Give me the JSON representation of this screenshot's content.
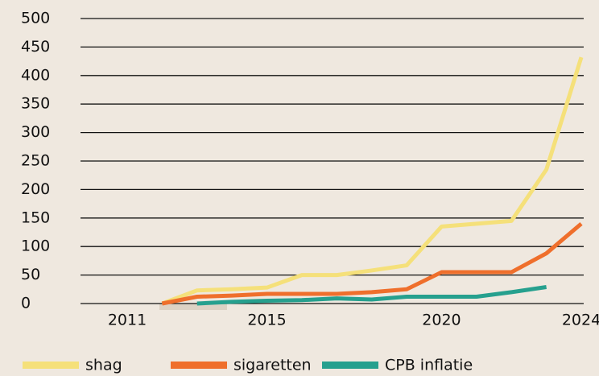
{
  "chart_data": {
    "type": "line",
    "x": [
      2012,
      2013,
      2014,
      2015,
      2016,
      2017,
      2018,
      2019,
      2020,
      2021,
      2022,
      2023,
      2024
    ],
    "series": [
      {
        "name": "shag",
        "color": "#f5e07a",
        "values": [
          0,
          23,
          25,
          28,
          50,
          50,
          58,
          67,
          135,
          140,
          145,
          235,
          432
        ]
      },
      {
        "name": "sigaretten",
        "color": "#ef6f2c",
        "values": [
          0,
          12,
          14,
          17,
          17,
          17,
          20,
          25,
          55,
          55,
          55,
          88,
          140
        ]
      },
      {
        "name": "CPB inflatie",
        "color": "#26a08e",
        "values": [
          null,
          0,
          3,
          5,
          6,
          9,
          7,
          12,
          12,
          12,
          20,
          29,
          null
        ]
      }
    ],
    "xlim": [
      2011,
      2024
    ],
    "xticks": [
      2011,
      2015,
      2020,
      2024
    ],
    "ylim": [
      0,
      500
    ],
    "yticks": [
      0,
      50,
      100,
      150,
      200,
      250,
      300,
      350,
      400,
      450,
      500
    ],
    "grid": true,
    "legend": "bottom"
  }
}
